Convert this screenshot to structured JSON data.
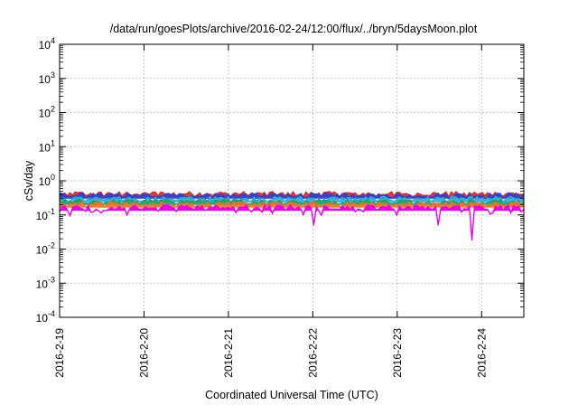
{
  "chart_data": {
    "type": "area",
    "title": "/data/run/goesPlots/archive/2016-02-24/12:00/flux/../bryn/5daysMoon.plot",
    "xlabel": "Coordinated Universal Time (UTC)",
    "ylabel": "cSv/day",
    "yscale": "log",
    "ylim": [
      0.0001,
      10000
    ],
    "y_ticks": [
      {
        "base": "10",
        "exp": "-4",
        "value": 0.0001
      },
      {
        "base": "10",
        "exp": "-3",
        "value": 0.001
      },
      {
        "base": "10",
        "exp": "-2",
        "value": 0.01
      },
      {
        "base": "10",
        "exp": "-1",
        "value": 0.1
      },
      {
        "base": "10",
        "exp": "0",
        "value": 1
      },
      {
        "base": "10",
        "exp": "1",
        "value": 10
      },
      {
        "base": "10",
        "exp": "2",
        "value": 100
      },
      {
        "base": "10",
        "exp": "3",
        "value": 1000
      },
      {
        "base": "10",
        "exp": "4",
        "value": 10000
      }
    ],
    "x_ticks": [
      "2016-2-19",
      "2016-2-20",
      "2016-2-21",
      "2016-2-22",
      "2016-2-23",
      "2016-2-24"
    ],
    "x_range_days": [
      "2016-02-19 00:00",
      "2016-02-24 12:00"
    ],
    "grid": true,
    "legend": "none",
    "series": [
      {
        "color": "#d62828",
        "typical_value": 0.42,
        "min_value": 0.3,
        "max_value": 0.6
      },
      {
        "color": "#2f3fd0",
        "typical_value": 0.38,
        "min_value": 0.27,
        "max_value": 0.55
      },
      {
        "color": "#22b0d8",
        "typical_value": 0.3,
        "min_value": 0.22,
        "max_value": 0.42
      },
      {
        "color": "#20a060",
        "typical_value": 0.25,
        "min_value": 0.19,
        "max_value": 0.32
      },
      {
        "color": "#f07020",
        "typical_value": 0.21,
        "min_value": 0.17,
        "max_value": 0.27
      },
      {
        "color": "#ee00ee",
        "typical_value": 0.17,
        "min_value": 0.018,
        "max_value": 0.22
      }
    ],
    "magenta_dips": [
      {
        "date": "2016-02-22 00:00",
        "value": 0.05
      },
      {
        "date": "2016-02-23 12:00",
        "value": 0.05
      },
      {
        "date": "2016-02-23 21:00",
        "value": 0.018
      }
    ]
  }
}
